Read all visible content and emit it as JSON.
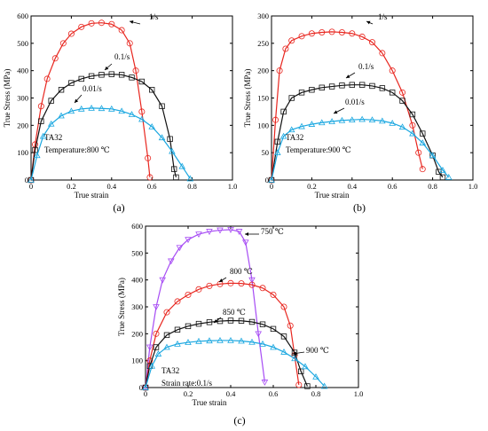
{
  "chart_data": [
    {
      "type": "line",
      "panel_label": "(a)",
      "xlabel": "True strain",
      "ylabel": "True Stress (MPa)",
      "xlim": [
        0,
        1.0
      ],
      "ylim": [
        0,
        600
      ],
      "xticks": [
        "0",
        "0.2",
        "0.4",
        "0.6",
        "0.8",
        "1.0"
      ],
      "yticks": [
        "0",
        "100",
        "200",
        "300",
        "400",
        "500",
        "600"
      ],
      "annotations": [
        "TA32",
        "Temperature:800 ℃"
      ],
      "series": [
        {
          "label": "1/s",
          "color": "#e8261f",
          "marker": "circle",
          "x": [
            0.0,
            0.02,
            0.05,
            0.08,
            0.12,
            0.16,
            0.2,
            0.25,
            0.3,
            0.35,
            0.4,
            0.45,
            0.49,
            0.52,
            0.55,
            0.58,
            0.59
          ],
          "y": [
            0,
            130,
            270,
            370,
            445,
            500,
            535,
            560,
            573,
            575,
            570,
            548,
            500,
            400,
            250,
            80,
            10
          ]
        },
        {
          "label": "0.1/s",
          "color": "#111111",
          "marker": "square",
          "x": [
            0.0,
            0.02,
            0.05,
            0.1,
            0.15,
            0.2,
            0.25,
            0.3,
            0.35,
            0.4,
            0.45,
            0.5,
            0.55,
            0.6,
            0.65,
            0.69,
            0.71,
            0.72
          ],
          "y": [
            0,
            110,
            215,
            290,
            330,
            355,
            370,
            380,
            385,
            387,
            385,
            375,
            360,
            330,
            270,
            150,
            40,
            10
          ]
        },
        {
          "label": "0.01/s",
          "color": "#1aa7e0",
          "marker": "triangle-up",
          "x": [
            0.0,
            0.03,
            0.06,
            0.1,
            0.15,
            0.2,
            0.25,
            0.3,
            0.35,
            0.4,
            0.45,
            0.5,
            0.55,
            0.6,
            0.65,
            0.7,
            0.75,
            0.79
          ],
          "y": [
            0,
            90,
            160,
            205,
            235,
            252,
            260,
            263,
            262,
            260,
            252,
            240,
            222,
            195,
            155,
            105,
            50,
            5
          ]
        }
      ]
    },
    {
      "type": "line",
      "panel_label": "(b)",
      "xlabel": "True strain",
      "ylabel": "True Stress (MPa)",
      "xlim": [
        0,
        1.0
      ],
      "ylim": [
        0,
        300
      ],
      "xticks": [
        "0",
        "0.2",
        "0.4",
        "0.6",
        "0.8",
        "1.0"
      ],
      "yticks": [
        "0",
        "50",
        "100",
        "150",
        "200",
        "250",
        "300"
      ],
      "annotations": [
        "TA32",
        "Temperature:900 ℃"
      ],
      "series": [
        {
          "label": "1/s",
          "color": "#e8261f",
          "marker": "circle",
          "x": [
            0.0,
            0.02,
            0.04,
            0.07,
            0.1,
            0.15,
            0.2,
            0.25,
            0.3,
            0.35,
            0.4,
            0.45,
            0.5,
            0.55,
            0.6,
            0.65,
            0.7,
            0.73,
            0.75
          ],
          "y": [
            0,
            110,
            200,
            240,
            255,
            263,
            268,
            270,
            271,
            270,
            268,
            262,
            252,
            232,
            200,
            160,
            100,
            50,
            20
          ]
        },
        {
          "label": "0.1/s",
          "color": "#111111",
          "marker": "square",
          "x": [
            0.0,
            0.03,
            0.06,
            0.1,
            0.15,
            0.2,
            0.25,
            0.3,
            0.35,
            0.4,
            0.45,
            0.5,
            0.55,
            0.6,
            0.65,
            0.7,
            0.75,
            0.8,
            0.83,
            0.85
          ],
          "y": [
            0,
            70,
            125,
            150,
            160,
            165,
            169,
            171,
            173,
            174,
            174,
            172,
            168,
            160,
            145,
            120,
            85,
            45,
            15,
            5
          ]
        },
        {
          "label": "0.01/s",
          "color": "#1aa7e0",
          "marker": "triangle-up",
          "x": [
            0.0,
            0.03,
            0.06,
            0.1,
            0.15,
            0.2,
            0.25,
            0.3,
            0.35,
            0.4,
            0.45,
            0.5,
            0.55,
            0.6,
            0.65,
            0.7,
            0.75,
            0.8,
            0.85,
            0.88
          ],
          "y": [
            0,
            50,
            80,
            92,
            98,
            102,
            105,
            107,
            109,
            110,
            111,
            110,
            108,
            104,
            97,
            85,
            68,
            45,
            18,
            5
          ]
        }
      ]
    },
    {
      "type": "line",
      "panel_label": "(c)",
      "xlabel": "True strain",
      "ylabel": "True Stress (MPa)",
      "xlim": [
        0,
        1.0
      ],
      "ylim": [
        0,
        600
      ],
      "xticks": [
        "0",
        "0.2",
        "0.4",
        "0.6",
        "0.8",
        "1.0"
      ],
      "yticks": [
        "0",
        "100",
        "200",
        "300",
        "400",
        "500",
        "600"
      ],
      "annotations": [
        "TA32",
        "Strain rate:0.1/s"
      ],
      "series": [
        {
          "label": "750 ℃",
          "color": "#a64bf4",
          "marker": "triangle-down",
          "x": [
            0.0,
            0.02,
            0.05,
            0.08,
            0.12,
            0.16,
            0.2,
            0.25,
            0.3,
            0.35,
            0.4,
            0.44,
            0.47,
            0.5,
            0.53,
            0.56
          ],
          "y": [
            0,
            150,
            300,
            400,
            470,
            520,
            550,
            570,
            580,
            585,
            587,
            580,
            540,
            400,
            200,
            20
          ]
        },
        {
          "label": "800 ℃",
          "color": "#e8261f",
          "marker": "circle",
          "x": [
            0.0,
            0.02,
            0.05,
            0.1,
            0.15,
            0.2,
            0.25,
            0.3,
            0.35,
            0.4,
            0.45,
            0.5,
            0.55,
            0.6,
            0.65,
            0.68,
            0.7,
            0.72
          ],
          "y": [
            0,
            100,
            200,
            280,
            320,
            345,
            365,
            378,
            385,
            388,
            387,
            382,
            370,
            345,
            300,
            230,
            120,
            10
          ]
        },
        {
          "label": "850 ℃",
          "color": "#111111",
          "marker": "square",
          "x": [
            0.0,
            0.02,
            0.05,
            0.1,
            0.15,
            0.2,
            0.25,
            0.3,
            0.35,
            0.4,
            0.45,
            0.5,
            0.55,
            0.6,
            0.65,
            0.7,
            0.73,
            0.76
          ],
          "y": [
            0,
            80,
            150,
            195,
            215,
            228,
            237,
            243,
            247,
            249,
            248,
            244,
            235,
            218,
            190,
            130,
            60,
            5
          ]
        },
        {
          "label": "900 ℃",
          "color": "#1aa7e0",
          "marker": "triangle-up",
          "x": [
            0.0,
            0.03,
            0.06,
            0.1,
            0.15,
            0.2,
            0.25,
            0.3,
            0.35,
            0.4,
            0.45,
            0.5,
            0.55,
            0.6,
            0.65,
            0.7,
            0.75,
            0.8,
            0.84
          ],
          "y": [
            0,
            80,
            125,
            150,
            162,
            168,
            172,
            174,
            175,
            175,
            173,
            169,
            162,
            150,
            132,
            108,
            78,
            40,
            5
          ]
        }
      ]
    }
  ]
}
